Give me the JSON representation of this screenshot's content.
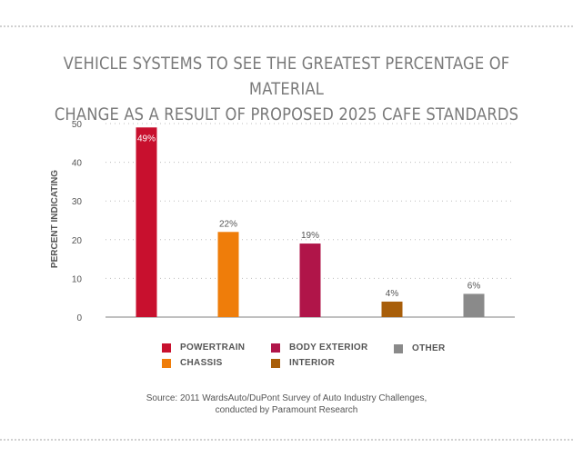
{
  "chart_data": {
    "type": "bar",
    "title_lines": [
      "VEHICLE SYSTEMS TO SEE THE GREATEST PERCENTAGE OF MATERIAL",
      "CHANGE AS A RESULT OF PROPOSED 2025 CAFE STANDARDS"
    ],
    "ylabel": "PERCENT INDICATING",
    "xlabel": "",
    "ylim": [
      0,
      50
    ],
    "yticks": [
      0,
      10,
      20,
      30,
      40,
      50
    ],
    "grid": true,
    "categories": [
      "POWERTRAIN",
      "CHASSIS",
      "BODY EXTERIOR",
      "INTERIOR",
      "OTHER"
    ],
    "values": [
      49,
      22,
      19,
      4,
      6
    ],
    "data_labels": [
      "49%",
      "22%",
      "19%",
      "4%",
      "6%"
    ],
    "colors": [
      "#c8102e",
      "#ef7d0a",
      "#b01549",
      "#a85e0a",
      "#8a8a8a"
    ],
    "label_colors": [
      "#ffffff",
      "#555555",
      "#555555",
      "#555555",
      "#555555"
    ],
    "legend_position": "bottom",
    "source_lines": [
      "Source: 2011 WardsAuto/DuPont Survey of Auto Industry Challenges,",
      "conducted by Paramount Research"
    ]
  }
}
